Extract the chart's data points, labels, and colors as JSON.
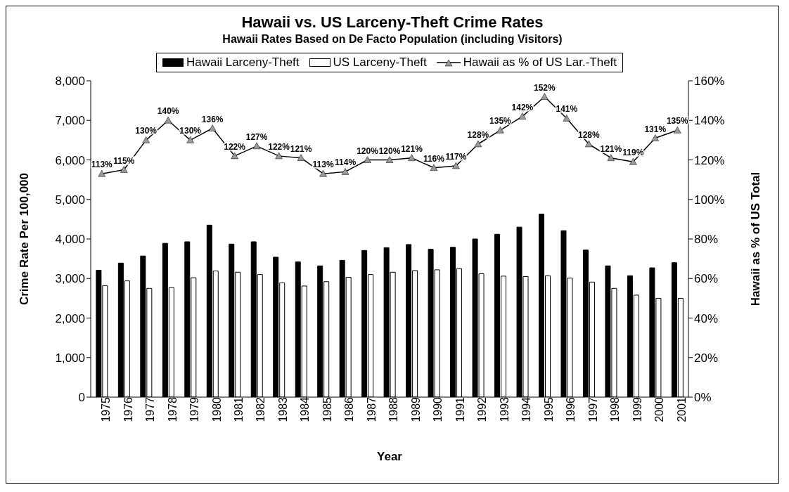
{
  "chart_data": {
    "type": "bar",
    "title": "Hawaii vs. US Larceny-Theft Crime Rates",
    "subtitle": "Hawaii Rates Based on De Facto Population (including Visitors)",
    "xlabel": "Year",
    "ylabel": "Crime Rate Per 100,000",
    "y2label": "Hawaii as % of US Total",
    "categories": [
      "1975",
      "1976",
      "1977",
      "1978",
      "1979",
      "1980",
      "1981",
      "1982",
      "1983",
      "1984",
      "1985",
      "1986",
      "1987",
      "1988",
      "1989",
      "1990",
      "1991",
      "1992",
      "1993",
      "1994",
      "1995",
      "1996",
      "1997",
      "1998",
      "1999",
      "2000",
      "2001"
    ],
    "series": [
      {
        "name": "Hawaii Larceny-Theft",
        "color": "#000000",
        "values": [
          3210,
          3390,
          3570,
          3890,
          3930,
          4350,
          3870,
          3930,
          3540,
          3420,
          3320,
          3460,
          3710,
          3780,
          3860,
          3740,
          3790,
          4000,
          4120,
          4300,
          4630,
          4210,
          3720,
          3320,
          3070,
          3270,
          3400
        ]
      },
      {
        "name": "US Larceny-Theft",
        "color": "#ffffff",
        "values": [
          2820,
          2940,
          2750,
          2770,
          3020,
          3190,
          3160,
          3100,
          2890,
          2810,
          2920,
          3030,
          3100,
          3160,
          3200,
          3220,
          3250,
          3120,
          3060,
          3050,
          3070,
          3010,
          2910,
          2750,
          2580,
          2500,
          2500
        ]
      },
      {
        "name": "Hawaii as % of US Lar.-Theft",
        "type": "line",
        "axis": "y2",
        "color": "#000000",
        "marker": "triangle",
        "values": [
          113,
          115,
          130,
          140,
          130,
          136,
          122,
          127,
          122,
          121,
          113,
          114,
          120,
          120,
          121,
          116,
          117,
          128,
          135,
          142,
          152,
          141,
          128,
          121,
          119,
          131,
          135
        ],
        "value_labels": [
          "113%",
          "115%",
          "130%",
          "140%",
          "130%",
          "136%",
          "122%",
          "127%",
          "122%",
          "121%",
          "113%",
          "114%",
          "120%",
          "120%",
          "121%",
          "116%",
          "117%",
          "128%",
          "135%",
          "142%",
          "152%",
          "141%",
          "128%",
          "121%",
          "119%",
          "131%",
          "135%"
        ]
      }
    ],
    "ylim": [
      0,
      8000
    ],
    "yticks": [
      0,
      {
        "value": 1000,
        "label": "1,000"
      },
      {
        "value": 2000,
        "label": "2,000"
      },
      {
        "value": 3000,
        "label": "3,000"
      },
      {
        "value": 4000,
        "label": "4,000"
      },
      {
        "value": 5000,
        "label": "5,000"
      },
      {
        "value": 6000,
        "label": "6,000"
      },
      {
        "value": 7000,
        "label": "7,000"
      },
      {
        "value": 8000,
        "label": "8,000"
      }
    ],
    "y2lim": [
      0,
      160
    ],
    "y2ticks": [
      {
        "value": 0,
        "label": "0%"
      },
      {
        "value": 20,
        "label": "20%"
      },
      {
        "value": 40,
        "label": "40%"
      },
      {
        "value": 60,
        "label": "60%"
      },
      {
        "value": 80,
        "label": "80%"
      },
      {
        "value": 100,
        "label": "100%"
      },
      {
        "value": 120,
        "label": "120%"
      },
      {
        "value": 140,
        "label": "140%"
      },
      {
        "value": 160,
        "label": "160%"
      }
    ],
    "legend": "top"
  }
}
